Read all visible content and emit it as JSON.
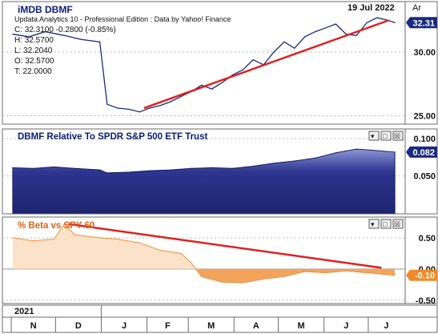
{
  "header": {
    "title": "iMDB DBMF",
    "date": "19 Jul 2022",
    "corner_label": "Ar",
    "source": "Updata Analytics 10 - Professional Edition : Data by Yahoo! Finance",
    "ohlc": {
      "close": "C: 32.3100  -0.2800 (-0.85%)",
      "high": "H: 32.5700",
      "low": "L: 32.2040",
      "open": "O: 32.5700",
      "t": "T: 22.0000"
    }
  },
  "panel2": {
    "title": "DBMF Relative To SPDR S&P 500 ETF Trust"
  },
  "panel3": {
    "title": "% Beta vs SPY 60"
  },
  "controls": {
    "btn1": "▾",
    "btn2": "□",
    "btn3": "☒"
  },
  "x_axis": {
    "year": "2021",
    "months": [
      "N",
      "D",
      "J",
      "F",
      "M",
      "A",
      "M",
      "J",
      "J"
    ]
  },
  "colors": {
    "price_line": "#1a2a80",
    "trend_line": "#e02020",
    "rel_fill": "#2d3590",
    "beta_fill_pos": "#fbe2c8",
    "beta_fill_neg": "#f4a45a",
    "beta_line": "#f09040",
    "title_blue": "#0a1e78",
    "title_orange": "#e06010"
  },
  "chart_data": [
    {
      "type": "line",
      "title": "iMDB DBMF",
      "x_label": "date",
      "yticks": [
        25.0,
        30.0
      ],
      "ylim": [
        24.4,
        33.9
      ],
      "last_value": "32.31",
      "series": [
        {
          "x": [
            "2020-11-02",
            "2020-11-13",
            "2020-11-24",
            "2020-12-07",
            "2020-12-18",
            "2020-12-31",
            "2021-01-05",
            "2021-01-12",
            "2021-01-20",
            "2021-01-27",
            "2021-02-03",
            "2021-02-10",
            "2021-02-17",
            "2021-02-24",
            "2021-03-03",
            "2021-03-10",
            "2021-03-17",
            "2021-03-24",
            "2021-03-31",
            "2021-04-07",
            "2021-04-14",
            "2021-04-21",
            "2021-04-28",
            "2021-05-05",
            "2021-05-12",
            "2021-05-19",
            "2021-05-26",
            "2021-06-02",
            "2021-06-09",
            "2021-06-16",
            "2021-06-23",
            "2021-06-30",
            "2021-07-07",
            "2021-07-14",
            "2021-07-19"
          ],
          "y": [
            31.4,
            31.2,
            31.6,
            31.3,
            31.0,
            30.8,
            25.9,
            25.6,
            25.5,
            25.3,
            25.6,
            25.8,
            26.1,
            26.5,
            26.9,
            27.4,
            27.1,
            27.6,
            28.2,
            28.6,
            29.4,
            29.0,
            30.0,
            30.8,
            30.3,
            31.2,
            31.6,
            31.9,
            32.2,
            31.4,
            31.3,
            32.3,
            32.7,
            32.5,
            32.31
          ]
        },
        {
          "name": "trend",
          "x": [
            "2021-01-30",
            "2021-07-15"
          ],
          "y": [
            25.6,
            32.5
          ]
        }
      ]
    },
    {
      "type": "area",
      "title": "DBMF Relative To SPDR S&P 500 ETF Trust",
      "yticks": [
        0.05,
        0.1
      ],
      "ylim": [
        0.0,
        0.112
      ],
      "last_value": "0.082",
      "series": [
        {
          "x": [
            "2020-11-02",
            "2020-11-16",
            "2020-11-30",
            "2020-12-14",
            "2020-12-31",
            "2021-01-05",
            "2021-01-20",
            "2021-02-03",
            "2021-02-17",
            "2021-03-03",
            "2021-03-17",
            "2021-03-31",
            "2021-04-14",
            "2021-04-28",
            "2021-05-12",
            "2021-05-26",
            "2021-06-09",
            "2021-06-23",
            "2021-07-07",
            "2021-07-19"
          ],
          "y": [
            0.061,
            0.06,
            0.062,
            0.06,
            0.058,
            0.054,
            0.055,
            0.057,
            0.058,
            0.06,
            0.061,
            0.06,
            0.063,
            0.067,
            0.07,
            0.074,
            0.081,
            0.086,
            0.084,
            0.082
          ]
        }
      ]
    },
    {
      "type": "area",
      "title": "% Beta vs SPY 60",
      "yticks": [
        -0.5,
        0.0,
        0.5
      ],
      "ylim": [
        -0.54,
        0.82
      ],
      "last_value": "-0.10",
      "series": [
        {
          "x": [
            "2020-11-02",
            "2020-11-16",
            "2020-11-30",
            "2020-12-07",
            "2020-12-14",
            "2020-12-31",
            "2021-01-12",
            "2021-01-27",
            "2021-02-10",
            "2021-02-24",
            "2021-03-03",
            "2021-03-10",
            "2021-03-24",
            "2021-04-07",
            "2021-04-21",
            "2021-05-05",
            "2021-05-19",
            "2021-06-02",
            "2021-06-16",
            "2021-06-30",
            "2021-07-19"
          ],
          "y": [
            0.5,
            0.45,
            0.48,
            0.72,
            0.55,
            0.5,
            0.48,
            0.42,
            0.3,
            0.25,
            0.1,
            -0.12,
            -0.21,
            -0.22,
            -0.16,
            -0.12,
            -0.04,
            -0.06,
            -0.03,
            -0.06,
            -0.1
          ]
        },
        {
          "name": "trend",
          "x": [
            "2020-12-10",
            "2021-07-10"
          ],
          "y": [
            0.72,
            0.02
          ]
        }
      ]
    }
  ]
}
